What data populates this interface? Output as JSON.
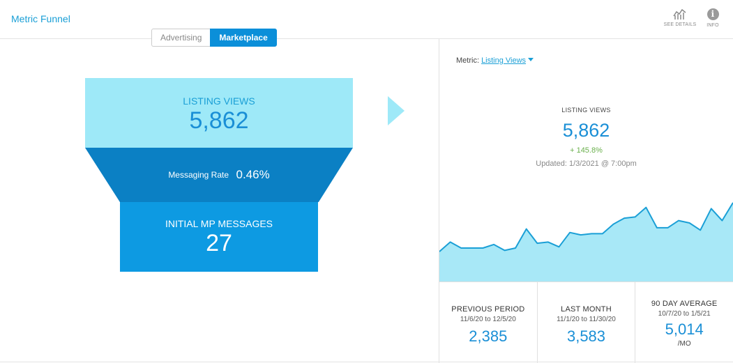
{
  "header": {
    "title": "Metric Funnel",
    "see_details_label": "SEE DETAILS",
    "see_details_icon": "chart-icon",
    "info_label": "INFO",
    "info_icon": "info-icon",
    "info_glyph": "i"
  },
  "toggle": {
    "options": [
      "Advertising",
      "Marketplace"
    ],
    "selected": "Marketplace"
  },
  "funnel": {
    "top_label": "LISTING VIEWS",
    "top_value": "5,862",
    "rate_label": "Messaging Rate",
    "rate_value": "0.46%",
    "bottom_label": "INITIAL MP MESSAGES",
    "bottom_value": "27"
  },
  "metric": {
    "label": "Metric:",
    "selected": "Listing Views"
  },
  "summary": {
    "label": "LISTING VIEWS",
    "value": "5,862",
    "change": "+ 145.8%",
    "updated": "Updated: 1/3/2021 @ 7:00pm"
  },
  "sparkline": [
    25,
    33,
    28,
    28,
    28,
    31,
    26,
    28,
    44,
    32,
    33,
    29,
    41,
    39,
    40,
    40,
    48,
    53,
    54,
    62,
    45,
    45,
    51,
    49,
    43,
    61,
    51,
    66
  ],
  "stats": [
    {
      "label": "PREVIOUS PERIOD",
      "dates": "11/6/20 to 12/5/20",
      "value": "2,385"
    },
    {
      "label": "LAST MONTH",
      "dates": "11/1/20 to 11/30/20",
      "value": "3,583"
    },
    {
      "label": "90 DAY AVERAGE",
      "dates": "10/7/20 to 1/5/21",
      "value": "5,014",
      "unit": "/MO"
    }
  ],
  "colors": {
    "accent": "#1a9fd6",
    "funnel_top": "#9ee9f8",
    "funnel_mid": "#0b80c4",
    "funnel_bottom": "#0d9ae2",
    "positive": "#6ab04c",
    "sparkline_line": "#1a9fd6",
    "sparkline_fill": "#a8e8f7"
  }
}
